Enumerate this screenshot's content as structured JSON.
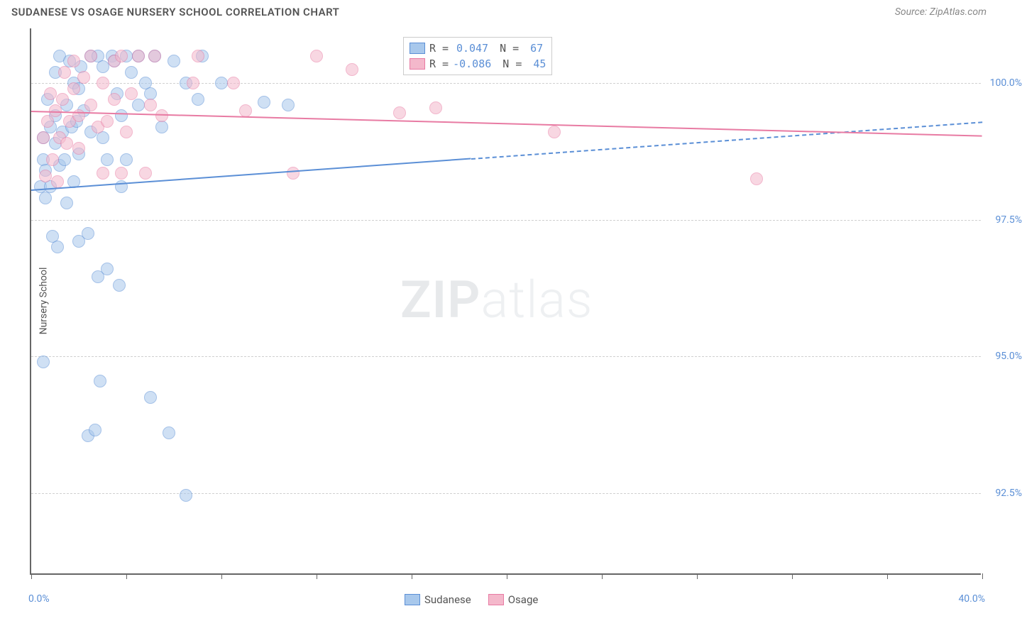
{
  "title": "SUDANESE VS OSAGE NURSERY SCHOOL CORRELATION CHART",
  "source": "Source: ZipAtlas.com",
  "watermark_zip": "ZIP",
  "watermark_atlas": "atlas",
  "ylabel": "Nursery School",
  "chart": {
    "type": "scatter",
    "xlim": [
      0,
      40
    ],
    "ylim": [
      91,
      101
    ],
    "xtick_positions": [
      0,
      4,
      8,
      12,
      16,
      20,
      24,
      28,
      32,
      36,
      40
    ],
    "xtick_labels_shown": {
      "0": "0.0%",
      "40": "40.0%"
    },
    "ytick_positions": [
      92.5,
      95.0,
      97.5,
      100.0
    ],
    "ytick_labels": [
      "92.5%",
      "95.0%",
      "97.5%",
      "100.0%"
    ],
    "background_color": "#ffffff",
    "grid_color": "#d0d0d0",
    "marker_radius": 9,
    "marker_opacity": 0.55,
    "series": [
      {
        "name": "Sudanese",
        "color_fill": "#a8c8ec",
        "color_stroke": "#5b8fd6",
        "R": "0.047",
        "N": "67",
        "trend": {
          "x0": 0,
          "y0": 98.05,
          "x1": 40,
          "y1": 99.3,
          "solid_until_x": 18.5
        },
        "points": [
          [
            0.4,
            98.1
          ],
          [
            0.5,
            98.6
          ],
          [
            0.5,
            99.0
          ],
          [
            0.6,
            97.9
          ],
          [
            0.6,
            98.4
          ],
          [
            0.7,
            99.7
          ],
          [
            0.8,
            98.1
          ],
          [
            0.8,
            99.2
          ],
          [
            0.9,
            97.2
          ],
          [
            1.0,
            98.9
          ],
          [
            1.0,
            99.4
          ],
          [
            1.0,
            100.2
          ],
          [
            1.1,
            97.0
          ],
          [
            1.2,
            100.5
          ],
          [
            1.2,
            98.5
          ],
          [
            1.3,
            99.1
          ],
          [
            1.4,
            98.6
          ],
          [
            1.5,
            99.6
          ],
          [
            1.5,
            97.8
          ],
          [
            1.6,
            100.4
          ],
          [
            1.7,
            99.2
          ],
          [
            1.8,
            100.0
          ],
          [
            1.8,
            98.2
          ],
          [
            1.9,
            99.3
          ],
          [
            2.0,
            97.1
          ],
          [
            2.0,
            98.7
          ],
          [
            2.1,
            100.3
          ],
          [
            2.2,
            99.5
          ],
          [
            2.4,
            93.55
          ],
          [
            2.4,
            97.25
          ],
          [
            2.5,
            100.5
          ],
          [
            2.5,
            99.1
          ],
          [
            2.7,
            93.65
          ],
          [
            2.8,
            100.5
          ],
          [
            2.8,
            96.45
          ],
          [
            2.9,
            94.55
          ],
          [
            3.0,
            100.3
          ],
          [
            3.0,
            99.0
          ],
          [
            3.2,
            96.6
          ],
          [
            3.2,
            98.6
          ],
          [
            3.4,
            100.5
          ],
          [
            3.5,
            100.4
          ],
          [
            3.6,
            99.8
          ],
          [
            3.7,
            96.3
          ],
          [
            3.8,
            99.4
          ],
          [
            4.0,
            100.5
          ],
          [
            4.0,
            98.6
          ],
          [
            4.2,
            100.2
          ],
          [
            4.5,
            99.6
          ],
          [
            4.5,
            100.5
          ],
          [
            4.8,
            100.0
          ],
          [
            5.0,
            99.8
          ],
          [
            5.0,
            94.25
          ],
          [
            5.2,
            100.5
          ],
          [
            5.5,
            99.2
          ],
          [
            5.8,
            93.6
          ],
          [
            6.0,
            100.4
          ],
          [
            6.5,
            92.45
          ],
          [
            6.5,
            100.0
          ],
          [
            7.0,
            99.7
          ],
          [
            7.2,
            100.5
          ],
          [
            8.0,
            100.0
          ],
          [
            0.5,
            94.9
          ],
          [
            2.0,
            99.9
          ],
          [
            3.8,
            98.1
          ],
          [
            9.8,
            99.65
          ],
          [
            10.8,
            99.6
          ]
        ]
      },
      {
        "name": "Osage",
        "color_fill": "#f4b8cb",
        "color_stroke": "#e87ba3",
        "R": "-0.086",
        "N": "45",
        "trend": {
          "x0": 0,
          "y0": 99.5,
          "x1": 40,
          "y1": 99.05,
          "solid_until_x": 40
        },
        "points": [
          [
            0.5,
            99.0
          ],
          [
            0.6,
            98.3
          ],
          [
            0.7,
            99.3
          ],
          [
            0.8,
            99.8
          ],
          [
            0.9,
            98.6
          ],
          [
            1.0,
            99.5
          ],
          [
            1.1,
            98.2
          ],
          [
            1.2,
            99.0
          ],
          [
            1.3,
            99.7
          ],
          [
            1.4,
            100.2
          ],
          [
            1.5,
            98.9
          ],
          [
            1.6,
            99.3
          ],
          [
            1.8,
            100.4
          ],
          [
            1.8,
            99.9
          ],
          [
            2.0,
            98.8
          ],
          [
            2.0,
            99.4
          ],
          [
            2.2,
            100.1
          ],
          [
            2.5,
            99.6
          ],
          [
            2.5,
            100.5
          ],
          [
            2.8,
            99.2
          ],
          [
            3.0,
            100.0
          ],
          [
            3.0,
            98.35
          ],
          [
            3.2,
            99.3
          ],
          [
            3.5,
            99.7
          ],
          [
            3.5,
            100.4
          ],
          [
            3.8,
            100.5
          ],
          [
            3.8,
            98.35
          ],
          [
            4.0,
            99.1
          ],
          [
            4.2,
            99.8
          ],
          [
            4.5,
            100.5
          ],
          [
            4.8,
            98.35
          ],
          [
            5.0,
            99.6
          ],
          [
            5.2,
            100.5
          ],
          [
            5.5,
            99.4
          ],
          [
            6.8,
            100.0
          ],
          [
            7.0,
            100.5
          ],
          [
            8.5,
            100.0
          ],
          [
            9.0,
            99.5
          ],
          [
            11.0,
            98.35
          ],
          [
            12.0,
            100.5
          ],
          [
            13.5,
            100.25
          ],
          [
            15.5,
            99.45
          ],
          [
            17.0,
            99.55
          ],
          [
            22.0,
            99.1
          ],
          [
            30.5,
            98.25
          ]
        ]
      }
    ]
  },
  "legend": {
    "r_label": "R =",
    "n_label": "N ="
  },
  "bottom_legend": [
    {
      "label": "Sudanese",
      "fill": "#a8c8ec",
      "stroke": "#5b8fd6"
    },
    {
      "label": "Osage",
      "fill": "#f4b8cb",
      "stroke": "#e87ba3"
    }
  ]
}
